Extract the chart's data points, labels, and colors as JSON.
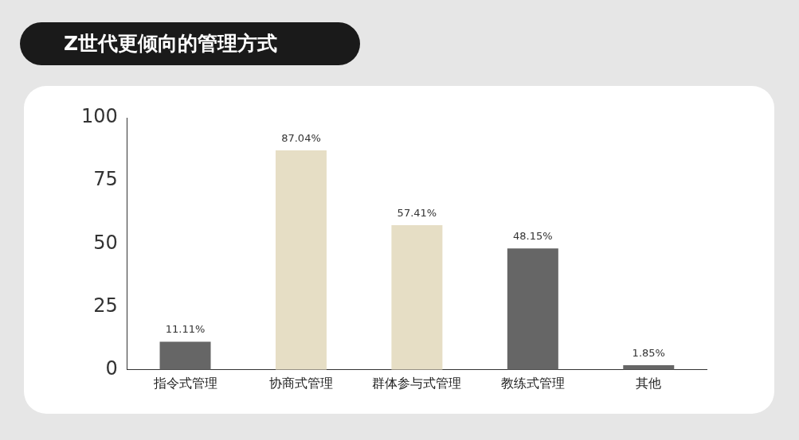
{
  "chart_data": {
    "type": "bar",
    "title": "Z世代更倾向的管理方式",
    "categories": [
      "指令式管理",
      "协商式管理",
      "群体参与式管理",
      "教练式管理",
      "其他"
    ],
    "values": [
      11.11,
      87.04,
      57.41,
      48.15,
      1.85
    ],
    "colors": [
      "#666666",
      "#e6dec5",
      "#e6dec5",
      "#666666",
      "#666666"
    ],
    "value_labels": [
      "11.11%",
      "87.04%",
      "57.41%",
      "48.15%",
      "1.85%"
    ],
    "ylim": [
      0,
      100
    ],
    "yticks": [
      0,
      25,
      50,
      75,
      100
    ],
    "grid": false,
    "legend": false
  }
}
